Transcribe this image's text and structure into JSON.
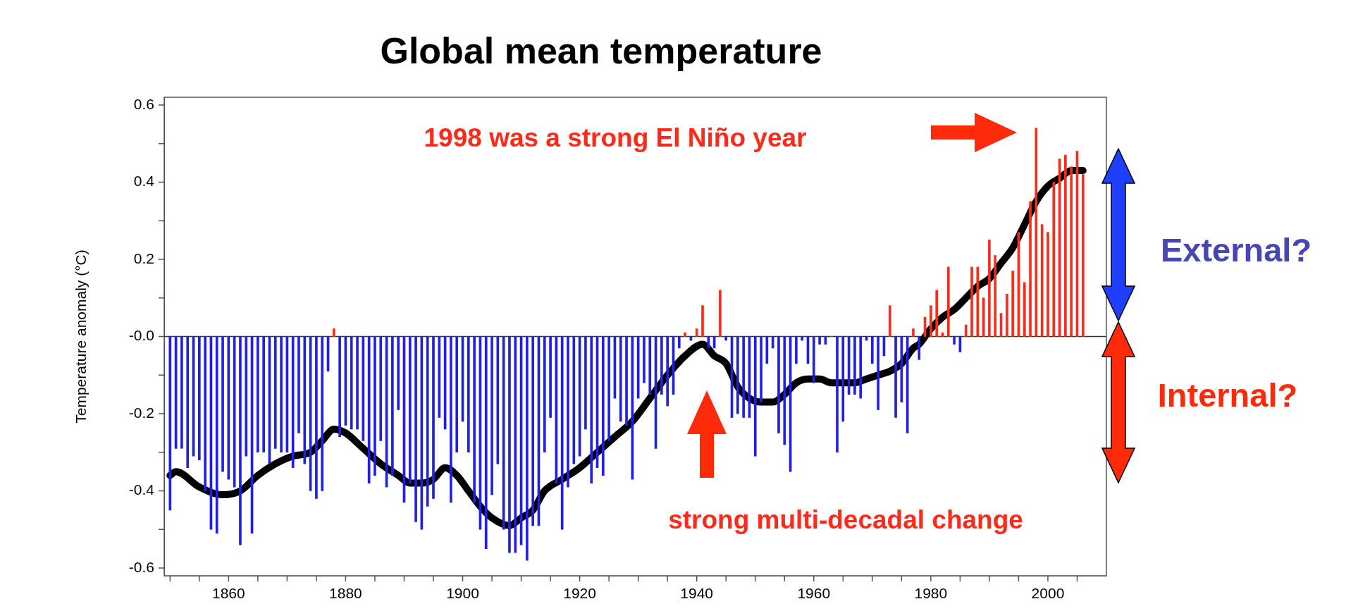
{
  "chart_data": {
    "type": "bar",
    "title": "Global mean temperature",
    "ylabel": "Temperature anomaly (°C)",
    "x": [
      1850,
      1851,
      1852,
      1853,
      1854,
      1855,
      1856,
      1857,
      1858,
      1859,
      1860,
      1861,
      1862,
      1863,
      1864,
      1865,
      1866,
      1867,
      1868,
      1869,
      1870,
      1871,
      1872,
      1873,
      1874,
      1875,
      1876,
      1877,
      1878,
      1879,
      1880,
      1881,
      1882,
      1883,
      1884,
      1885,
      1886,
      1887,
      1888,
      1889,
      1890,
      1891,
      1892,
      1893,
      1894,
      1895,
      1896,
      1897,
      1898,
      1899,
      1900,
      1901,
      1902,
      1903,
      1904,
      1905,
      1906,
      1907,
      1908,
      1909,
      1910,
      1911,
      1912,
      1913,
      1914,
      1915,
      1916,
      1917,
      1918,
      1919,
      1920,
      1921,
      1922,
      1923,
      1924,
      1925,
      1926,
      1927,
      1928,
      1929,
      1930,
      1931,
      1932,
      1933,
      1934,
      1935,
      1936,
      1937,
      1938,
      1939,
      1940,
      1941,
      1942,
      1943,
      1944,
      1945,
      1946,
      1947,
      1948,
      1949,
      1950,
      1951,
      1952,
      1953,
      1954,
      1955,
      1956,
      1957,
      1958,
      1959,
      1960,
      1961,
      1962,
      1963,
      1964,
      1965,
      1966,
      1967,
      1968,
      1969,
      1970,
      1971,
      1972,
      1973,
      1974,
      1975,
      1976,
      1977,
      1978,
      1979,
      1980,
      1981,
      1982,
      1983,
      1984,
      1985,
      1986,
      1987,
      1988,
      1989,
      1990,
      1991,
      1992,
      1993,
      1994,
      1995,
      1996,
      1997,
      1998,
      1999,
      2000,
      2001,
      2002,
      2003,
      2004,
      2005,
      2006
    ],
    "series": [
      {
        "values": [
          -0.45,
          -0.29,
          -0.29,
          -0.34,
          -0.31,
          -0.32,
          -0.4,
          -0.5,
          -0.51,
          -0.35,
          -0.37,
          -0.39,
          -0.54,
          -0.31,
          -0.51,
          -0.3,
          -0.3,
          -0.33,
          -0.29,
          -0.3,
          -0.3,
          -0.34,
          -0.25,
          -0.33,
          -0.4,
          -0.42,
          -0.4,
          -0.09,
          0.02,
          -0.26,
          -0.23,
          -0.24,
          -0.24,
          -0.27,
          -0.38,
          -0.36,
          -0.27,
          -0.39,
          -0.36,
          -0.19,
          -0.43,
          -0.38,
          -0.48,
          -0.5,
          -0.44,
          -0.42,
          -0.21,
          -0.24,
          -0.43,
          -0.3,
          -0.22,
          -0.3,
          -0.43,
          -0.5,
          -0.55,
          -0.41,
          -0.33,
          -0.5,
          -0.56,
          -0.56,
          -0.54,
          -0.58,
          -0.49,
          -0.49,
          -0.3,
          -0.21,
          -0.38,
          -0.5,
          -0.39,
          -0.33,
          -0.31,
          -0.24,
          -0.38,
          -0.34,
          -0.36,
          -0.27,
          -0.16,
          -0.22,
          -0.23,
          -0.37,
          -0.16,
          -0.12,
          -0.15,
          -0.29,
          -0.15,
          -0.18,
          -0.15,
          -0.03,
          0.01,
          -0.01,
          0.02,
          0.08,
          -0.03,
          -0.03,
          0.12,
          -0.01,
          -0.21,
          -0.2,
          -0.21,
          -0.21,
          -0.31,
          -0.17,
          -0.07,
          -0.03,
          -0.25,
          -0.28,
          -0.35,
          -0.07,
          -0.01,
          -0.07,
          -0.12,
          -0.02,
          -0.02,
          0.0,
          -0.3,
          -0.22,
          -0.15,
          -0.15,
          -0.16,
          -0.01,
          -0.07,
          -0.19,
          -0.05,
          0.08,
          -0.21,
          -0.17,
          -0.25,
          0.02,
          -0.06,
          0.05,
          0.08,
          0.12,
          0.01,
          0.18,
          -0.02,
          -0.04,
          0.03,
          0.18,
          0.18,
          0.1,
          0.25,
          0.21,
          0.06,
          0.11,
          0.17,
          0.27,
          0.14,
          0.35,
          0.54,
          0.29,
          0.27,
          0.4,
          0.46,
          0.47,
          0.44,
          0.48,
          0.42
        ],
        "colors": [
          "#1f1fe6",
          "#1f1fe6",
          "#1f1fe6",
          "#1f1fe6",
          "#1f1fe6",
          "#1f1fe6",
          "#1f1fe6",
          "#1f1fe6",
          "#1f1fe6",
          "#1f1fe6",
          "#1f1fe6",
          "#1f1fe6",
          "#1f1fe6",
          "#1f1fe6",
          "#1f1fe6",
          "#1f1fe6",
          "#1f1fe6",
          "#1f1fe6",
          "#1f1fe6",
          "#1f1fe6",
          "#1f1fe6",
          "#1f1fe6",
          "#1f1fe6",
          "#1f1fe6",
          "#1f1fe6",
          "#1f1fe6",
          "#1f1fe6",
          "#1f1fe6",
          "#ff2a1a",
          "#1f1fe6",
          "#1f1fe6",
          "#1f1fe6",
          "#1f1fe6",
          "#1f1fe6",
          "#1f1fe6",
          "#1f1fe6",
          "#1f1fe6",
          "#1f1fe6",
          "#1f1fe6",
          "#1f1fe6",
          "#1f1fe6",
          "#1f1fe6",
          "#1f1fe6",
          "#1f1fe6",
          "#1f1fe6",
          "#1f1fe6",
          "#1f1fe6",
          "#1f1fe6",
          "#1f1fe6",
          "#1f1fe6",
          "#1f1fe6",
          "#1f1fe6",
          "#1f1fe6",
          "#1f1fe6",
          "#1f1fe6",
          "#1f1fe6",
          "#1f1fe6",
          "#1f1fe6",
          "#1f1fe6",
          "#1f1fe6",
          "#1f1fe6",
          "#1f1fe6",
          "#1f1fe6",
          "#1f1fe6",
          "#1f1fe6",
          "#1f1fe6",
          "#1f1fe6",
          "#1f1fe6",
          "#1f1fe6",
          "#1f1fe6",
          "#1f1fe6",
          "#1f1fe6",
          "#1f1fe6",
          "#1f1fe6",
          "#1f1fe6",
          "#1f1fe6",
          "#1f1fe6",
          "#1f1fe6",
          "#1f1fe6",
          "#1f1fe6",
          "#1f1fe6",
          "#1f1fe6",
          "#1f1fe6",
          "#1f1fe6",
          "#1f1fe6",
          "#1f1fe6",
          "#1f1fe6",
          "#1f1fe6",
          "#ff2a1a",
          "#1f1fe6",
          "#ff2a1a",
          "#ff2a1a",
          "#1f1fe6",
          "#1f1fe6",
          "#ff2a1a",
          "#1f1fe6",
          "#1f1fe6",
          "#1f1fe6",
          "#1f1fe6",
          "#1f1fe6",
          "#1f1fe6",
          "#1f1fe6",
          "#1f1fe6",
          "#1f1fe6",
          "#1f1fe6",
          "#1f1fe6",
          "#1f1fe6",
          "#1f1fe6",
          "#1f1fe6",
          "#1f1fe6",
          "#1f1fe6",
          "#1f1fe6",
          "#1f1fe6",
          "#ff2a1a",
          "#1f1fe6",
          "#1f1fe6",
          "#1f1fe6",
          "#1f1fe6",
          "#1f1fe6",
          "#1f1fe6",
          "#1f1fe6",
          "#1f1fe6",
          "#1f1fe6",
          "#ff2a1a",
          "#1f1fe6",
          "#1f1fe6",
          "#1f1fe6",
          "#ff2a1a",
          "#1f1fe6",
          "#ff2a1a",
          "#ff2a1a",
          "#ff2a1a",
          "#ff2a1a",
          "#ff2a1a",
          "#1f1fe6",
          "#1f1fe6",
          "#ff2a1a",
          "#ff2a1a",
          "#ff2a1a",
          "#ff2a1a",
          "#ff2a1a",
          "#ff2a1a",
          "#ff2a1a",
          "#ff2a1a",
          "#ff2a1a",
          "#ff2a1a",
          "#ff2a1a",
          "#ff2a1a",
          "#ff2a1a",
          "#ff2a1a",
          "#ff2a1a",
          "#ff2a1a",
          "#ff2a1a",
          "#ff2a1a",
          "#ff2a1a",
          "#ff2a1a",
          "#ff2a1a"
        ]
      },
      {
        "type": "line",
        "color": "#000000",
        "x": [
          1850,
          1851,
          1855,
          1859,
          1862,
          1865,
          1868,
          1871,
          1874,
          1876,
          1878,
          1880,
          1883,
          1886,
          1889,
          1891,
          1893,
          1895,
          1897,
          1899,
          1901,
          1903,
          1905,
          1908,
          1910,
          1912,
          1914,
          1917,
          1920,
          1923,
          1926,
          1929,
          1932,
          1935,
          1938,
          1941,
          1943,
          1945,
          1947,
          1949,
          1951,
          1953,
          1955,
          1957,
          1959,
          1961,
          1963,
          1965,
          1967,
          1969,
          1971,
          1973,
          1975,
          1977,
          1978,
          1980,
          1982,
          1984,
          1986,
          1988,
          1990,
          1992,
          1994,
          1996,
          1998,
          2000,
          2002,
          2004,
          2006
        ],
        "values": [
          -0.36,
          -0.35,
          -0.39,
          -0.41,
          -0.4,
          -0.36,
          -0.33,
          -0.31,
          -0.3,
          -0.27,
          -0.24,
          -0.25,
          -0.29,
          -0.33,
          -0.36,
          -0.38,
          -0.38,
          -0.37,
          -0.34,
          -0.36,
          -0.4,
          -0.44,
          -0.47,
          -0.49,
          -0.47,
          -0.45,
          -0.4,
          -0.37,
          -0.34,
          -0.3,
          -0.26,
          -0.22,
          -0.16,
          -0.1,
          -0.05,
          -0.02,
          -0.05,
          -0.07,
          -0.13,
          -0.16,
          -0.17,
          -0.17,
          -0.15,
          -0.12,
          -0.11,
          -0.11,
          -0.12,
          -0.12,
          -0.12,
          -0.11,
          -0.1,
          -0.09,
          -0.07,
          -0.03,
          -0.02,
          0.02,
          0.05,
          0.07,
          0.1,
          0.13,
          0.15,
          0.19,
          0.23,
          0.29,
          0.35,
          0.39,
          0.41,
          0.43,
          0.43
        ]
      }
    ],
    "xlim": [
      1849,
      2010
    ],
    "xticks": [
      {
        "value": 1850,
        "label": null
      },
      {
        "value": 1855,
        "label": null
      },
      1860,
      {
        "value": 1865,
        "label": null
      },
      {
        "value": 1870,
        "label": null
      },
      {
        "value": 1875,
        "label": null
      },
      1880,
      {
        "value": 1885,
        "label": null
      },
      {
        "value": 1890,
        "label": null
      },
      {
        "value": 1895,
        "label": null
      },
      1900,
      {
        "value": 1905,
        "label": null
      },
      {
        "value": 1910,
        "label": null
      },
      {
        "value": 1915,
        "label": null
      },
      1920,
      {
        "value": 1925,
        "label": null
      },
      {
        "value": 1930,
        "label": null
      },
      {
        "value": 1935,
        "label": null
      },
      1940,
      {
        "value": 1945,
        "label": null
      },
      {
        "value": 1950,
        "label": null
      },
      {
        "value": 1955,
        "label": null
      },
      1960,
      {
        "value": 1965,
        "label": null
      },
      {
        "value": 1970,
        "label": null
      },
      {
        "value": 1975,
        "label": null
      },
      1980,
      {
        "value": 1985,
        "label": null
      },
      {
        "value": 1990,
        "label": null
      },
      {
        "value": 1995,
        "label": null
      },
      2000,
      {
        "value": 2005,
        "label": null
      }
    ],
    "ylim": [
      -0.62,
      0.62
    ],
    "yticks": [
      -0.6,
      {
        "value": -0.5,
        "label": null
      },
      -0.4,
      {
        "value": -0.3,
        "label": null
      },
      -0.2,
      {
        "value": -0.1,
        "label": null
      },
      {
        "value": 0,
        "label": "-0.0"
      },
      {
        "value": 0.1,
        "label": null
      },
      0.2,
      {
        "value": 0.3,
        "label": null
      },
      0.4,
      {
        "value": 0.5,
        "label": null
      },
      0.6
    ],
    "ref_lines": [
      {
        "axis": "y",
        "value": 0,
        "color": "#333333"
      }
    ],
    "grid": false,
    "legend": false,
    "annotations": [
      "1998 was a strong El Niño year",
      "strong multi-decadal change",
      "External?",
      "Internal?"
    ]
  }
}
